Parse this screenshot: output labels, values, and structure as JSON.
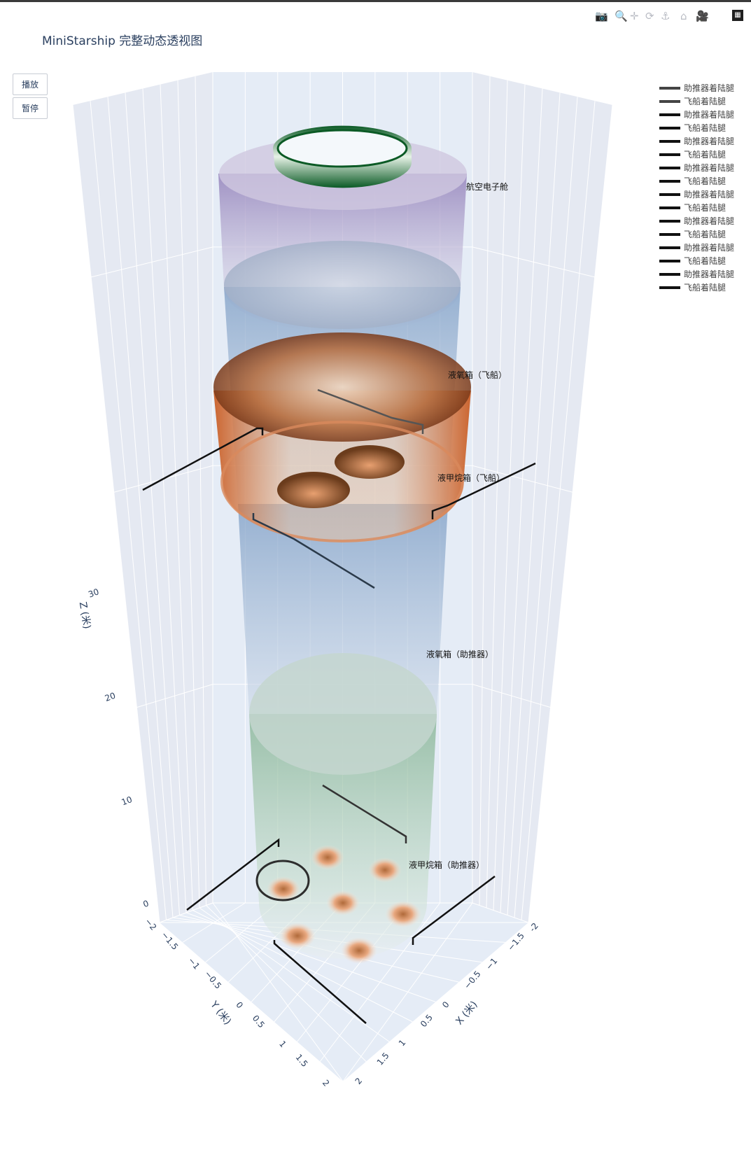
{
  "title": "MiniStarship 完整动态透视图",
  "controls": {
    "play_label": "播放",
    "pause_label": "暂停"
  },
  "modebar": [
    "camera-icon",
    "zoom-icon",
    "pan-icon",
    "orbit-icon",
    "turntable-icon",
    "home-icon",
    "reset-camera-icon",
    "plotly-logo-icon"
  ],
  "legend": [
    "助推器着陆腿",
    "飞船着陆腿",
    "助推器着陆腿",
    "飞船着陆腿",
    "助推器着陆腿",
    "飞船着陆腿",
    "助推器着陆腿",
    "飞船着陆腿",
    "助推器着陆腿",
    "飞船着陆腿",
    "助推器着陆腿",
    "飞船着陆腿",
    "助推器着陆腿",
    "飞船着陆腿",
    "助推器着陆腿",
    "飞船着陆腿"
  ],
  "chart_data": {
    "type": "surface3d",
    "title": "MiniStarship 完整动态透视图",
    "axes": {
      "x": {
        "label": "X (米)",
        "range": [
          -2,
          2
        ],
        "ticks": [
          "-2",
          "−1.5",
          "−1",
          "−0.5",
          "0",
          "0.5",
          "1",
          "1.5",
          "2"
        ]
      },
      "y": {
        "label": "Y (米)",
        "range": [
          -2,
          2
        ],
        "ticks": [
          "−2",
          "−1.5",
          "−1",
          "−0.5",
          "0",
          "0.5",
          "1",
          "1.5",
          "2"
        ]
      },
      "z": {
        "label": "Z (米)",
        "range": [
          0,
          38
        ],
        "ticks": [
          "0",
          "10",
          "20",
          "30"
        ]
      }
    },
    "components": [
      {
        "name": "航空电子舱",
        "colorscale": "purple-white",
        "radius": 1.5,
        "z": [
          33.5,
          37
        ]
      },
      {
        "name": "液氧箱（飞船）",
        "colorscale": "orange-brown",
        "radius": 1.55,
        "z": [
          28,
          32
        ]
      },
      {
        "name": "液甲烷箱（飞船）",
        "colorscale": "blue-white",
        "radius": 1.45,
        "z": [
          16,
          33
        ]
      },
      {
        "name": "液氧箱（助推器）",
        "colorscale": "blue-white",
        "radius": 1.4,
        "z": [
          9,
          18
        ]
      },
      {
        "name": "液甲烷箱（助推器）",
        "colorscale": "green-white",
        "radius": 1.35,
        "z": [
          0,
          9
        ]
      }
    ],
    "grid": true,
    "legend_position": "top-right"
  }
}
